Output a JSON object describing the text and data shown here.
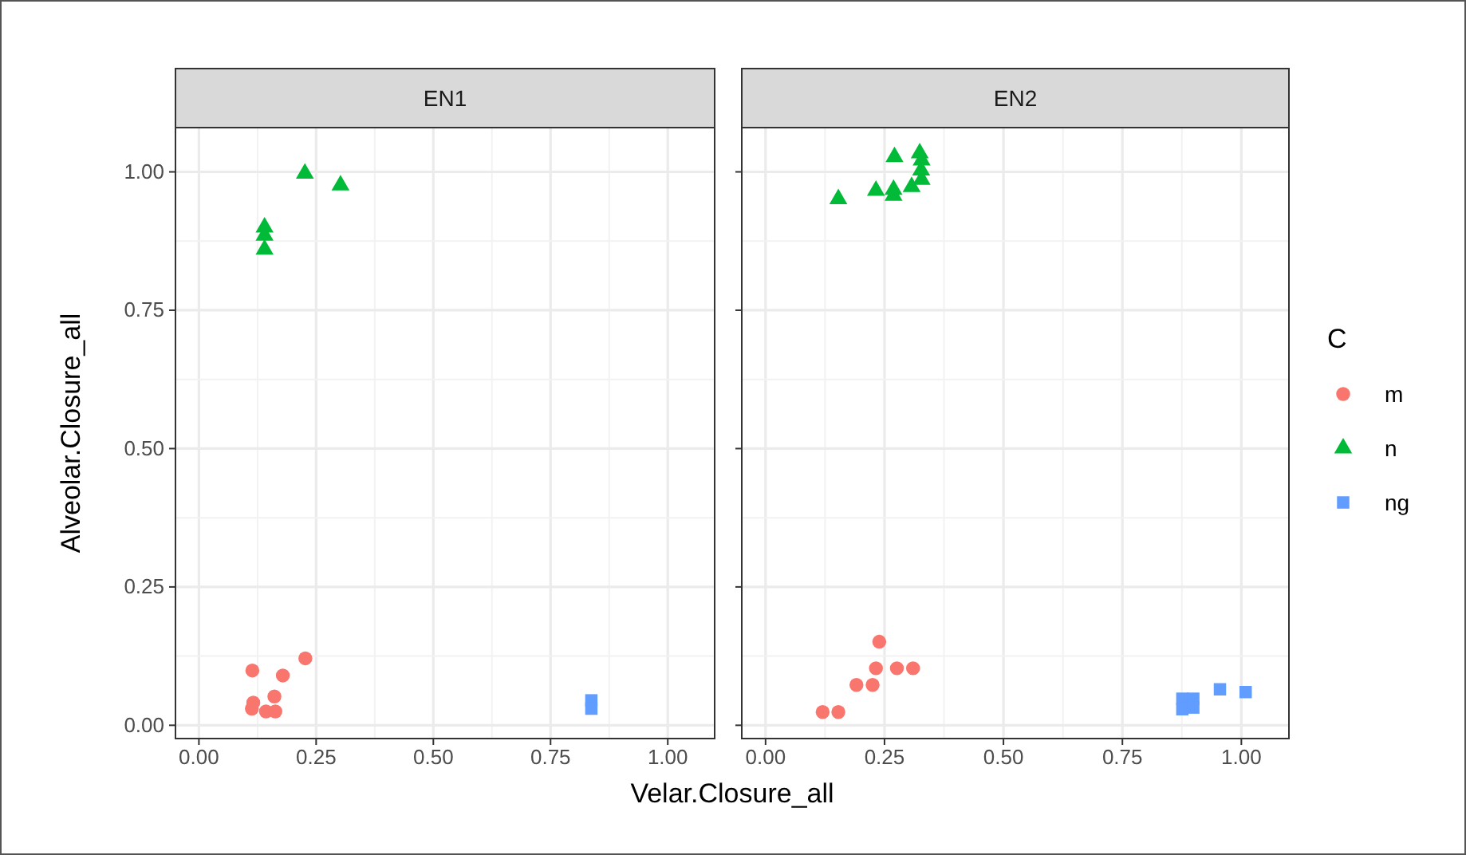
{
  "chart_data": [
    {
      "type": "scatter",
      "title": "EN1",
      "xlabel": "Velar.Closure_all",
      "ylabel": "Alveolar.Closure_all",
      "legend_title": "C",
      "legend": "right",
      "grid": true,
      "xlim": [
        -0.05,
        1.1
      ],
      "ylim": [
        -0.024,
        1.08
      ],
      "xticks": [
        {
          "value": 0,
          "label": "0.00"
        },
        {
          "value": 0.25,
          "label": "0.25"
        },
        {
          "value": 0.5,
          "label": "0.50"
        },
        {
          "value": 0.75,
          "label": "0.75"
        },
        {
          "value": 1,
          "label": "1.00"
        }
      ],
      "yticks": [
        {
          "value": 0,
          "label": "0.00"
        },
        {
          "value": 0.25,
          "label": "0.25"
        },
        {
          "value": 0.5,
          "label": "0.50"
        },
        {
          "value": 0.75,
          "label": "0.75"
        },
        {
          "value": 1,
          "label": "1.00"
        }
      ],
      "series": [
        {
          "name": "m",
          "color": "#f8766d",
          "marker": "circle",
          "x": [
            0.114,
            0.179,
            0.227,
            0.161,
            0.116,
            0.113,
            0.143,
            0.163
          ],
          "values": [
            0.099,
            0.09,
            0.121,
            0.052,
            0.041,
            0.03,
            0.025,
            0.025
          ]
        },
        {
          "name": "n",
          "color": "#00ba38",
          "marker": "triangle",
          "x": [
            0.226,
            0.302,
            0.14,
            0.14,
            0.14
          ],
          "values": [
            0.997,
            0.976,
            0.9,
            0.885,
            0.86
          ]
        },
        {
          "name": "ng",
          "color": "#619cff",
          "marker": "square",
          "x": [
            0.837,
            0.837
          ],
          "values": [
            0.045,
            0.03
          ]
        }
      ]
    },
    {
      "type": "scatter",
      "title": "EN2",
      "grid": true,
      "tick_labels": "x",
      "xlim": [
        -0.05,
        1.1
      ],
      "ylim": [
        -0.024,
        1.08
      ],
      "xticks": [
        {
          "value": 0,
          "label": "0.00"
        },
        {
          "value": 0.25,
          "label": "0.25"
        },
        {
          "value": 0.5,
          "label": "0.50"
        },
        {
          "value": 0.75,
          "label": "0.75"
        },
        {
          "value": 1,
          "label": "1.00"
        }
      ],
      "yticks": [
        {
          "value": 0,
          "label": null
        },
        {
          "value": 0.25,
          "label": null
        },
        {
          "value": 0.5,
          "label": null
        },
        {
          "value": 0.75,
          "label": null
        },
        {
          "value": 1,
          "label": null
        }
      ],
      "series": [
        {
          "color": "#f8766d",
          "marker": "circle",
          "x": [
            0.239,
            0.232,
            0.276,
            0.31,
            0.191,
            0.225,
            0.12,
            0.153
          ],
          "values": [
            0.151,
            0.103,
            0.103,
            0.103,
            0.073,
            0.073,
            0.024,
            0.024
          ]
        },
        {
          "color": "#00ba38",
          "marker": "triangle",
          "x": [
            0.271,
            0.324,
            0.328,
            0.327,
            0.328,
            0.307,
            0.269,
            0.269,
            0.232,
            0.153
          ],
          "values": [
            1.027,
            1.034,
            1.021,
            1.003,
            0.986,
            0.973,
            0.968,
            0.957,
            0.966,
            0.951
          ]
        },
        {
          "color": "#619cff",
          "marker": "square",
          "x": [
            0.955,
            1.009,
            0.876,
            0.876,
            0.899,
            0.899
          ],
          "values": [
            0.065,
            0.06,
            0.048,
            0.029,
            0.048,
            0.032
          ]
        }
      ]
    }
  ]
}
